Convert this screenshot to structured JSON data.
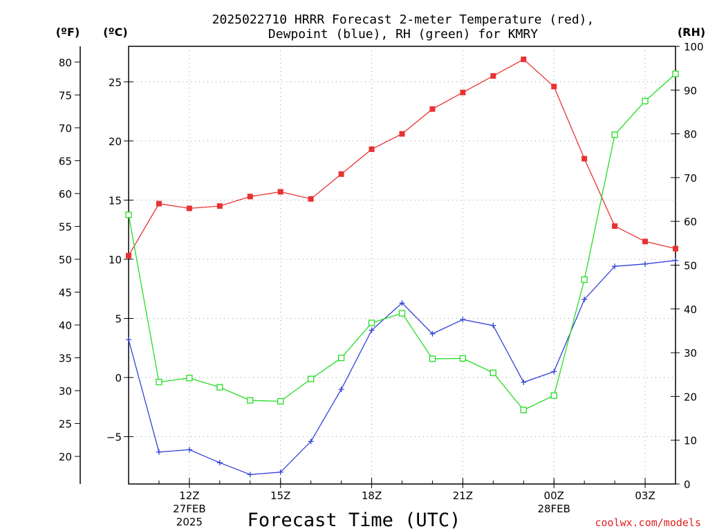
{
  "chart_data": {
    "type": "line",
    "title_line1": "2025022710 HRRR Forecast 2-meter Temperature (red),",
    "title_line2": "Dewpoint (blue), RH (green) for KMRY",
    "xlabel": "Forecast Time (UTC)",
    "watermark": "coolwx.com/models",
    "left_axis_f": {
      "label": "(ºF)",
      "ticks": [
        20,
        25,
        30,
        35,
        40,
        45,
        50,
        55,
        60,
        65,
        70,
        75,
        80
      ]
    },
    "left_axis_c": {
      "label": "(ºC)",
      "ticks": [
        -5,
        0,
        5,
        10,
        15,
        20,
        25
      ],
      "ylim": [
        -9,
        28
      ]
    },
    "right_axis_rh": {
      "label": "(RH)",
      "ticks": [
        0,
        10,
        20,
        30,
        40,
        50,
        60,
        70,
        80,
        90,
        100
      ],
      "ylim": [
        0,
        100
      ]
    },
    "x_hours": [
      10,
      11,
      12,
      13,
      14,
      15,
      16,
      17,
      18,
      19,
      20,
      21,
      22,
      23,
      24,
      25,
      26,
      27,
      28
    ],
    "x_ticks": [
      {
        "hour": 12,
        "label": "12Z",
        "sub1": "27FEB",
        "sub2": "2025"
      },
      {
        "hour": 15,
        "label": "15Z",
        "sub1": "",
        "sub2": ""
      },
      {
        "hour": 18,
        "label": "18Z",
        "sub1": "",
        "sub2": ""
      },
      {
        "hour": 21,
        "label": "21Z",
        "sub1": "",
        "sub2": ""
      },
      {
        "hour": 24,
        "label": "00Z",
        "sub1": "28FEB",
        "sub2": ""
      },
      {
        "hour": 27,
        "label": "03Z",
        "sub1": "",
        "sub2": ""
      }
    ],
    "series": [
      {
        "axis": "celsius",
        "color": "#e83232",
        "marker": "filled-square",
        "values": [
          10.3,
          14.7,
          14.3,
          14.5,
          15.3,
          15.7,
          15.1,
          17.2,
          19.3,
          20.6,
          22.7,
          24.1,
          25.5,
          26.9,
          24.6,
          18.5,
          12.8,
          11.5,
          10.9
        ]
      },
      {
        "axis": "celsius",
        "color": "#3040d8",
        "marker": "plus",
        "values": [
          3.2,
          -6.3,
          -6.1,
          -7.2,
          -8.2,
          -8.0,
          -5.4,
          -1.0,
          4.0,
          6.3,
          3.7,
          4.9,
          4.4,
          -0.4,
          0.5,
          6.6,
          9.4,
          9.6,
          9.9
        ]
      },
      {
        "axis": "rh",
        "color": "#22dd22",
        "marker": "open-square",
        "values": [
          61.5,
          23.3,
          24.2,
          22.1,
          19.1,
          18.9,
          24.0,
          28.8,
          36.8,
          39.0,
          28.6,
          28.7,
          25.4,
          16.9,
          20.2,
          46.7,
          79.8,
          87.5,
          93.7
        ]
      }
    ],
    "grid": true
  }
}
